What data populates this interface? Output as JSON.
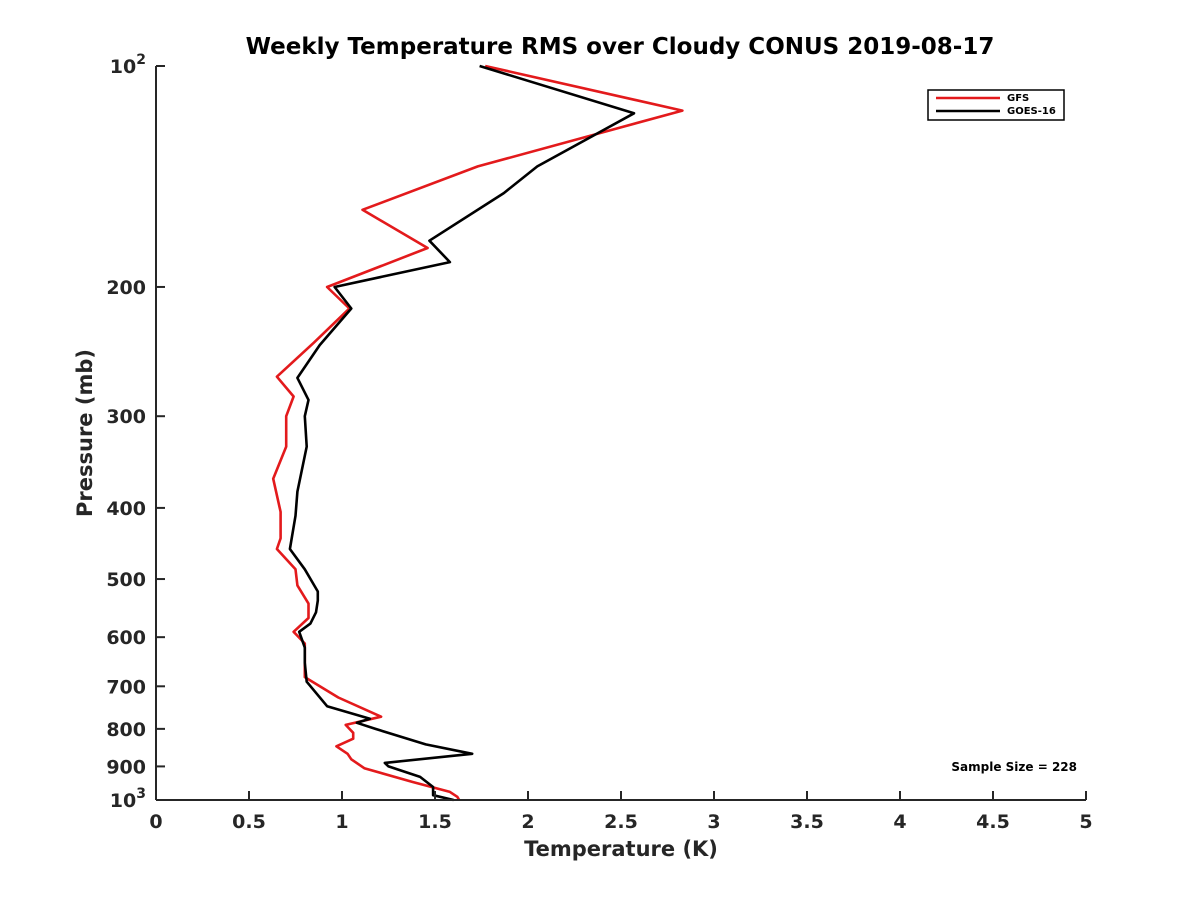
{
  "chart_data": {
    "type": "line",
    "title": "Weekly Temperature RMS over Cloudy CONUS 2019-08-17",
    "xlabel": "Temperature (K)",
    "ylabel": "Pressure (mb)",
    "xlim": [
      0,
      5
    ],
    "ylim": [
      100,
      1000
    ],
    "y_scale": "log",
    "y_reversed": true,
    "x_ticks": [
      0,
      0.5,
      1,
      1.5,
      2,
      2.5,
      3,
      3.5,
      4,
      4.5,
      5
    ],
    "x_tick_labels": [
      "0",
      "0.5",
      "1",
      "1.5",
      "2",
      "2.5",
      "3",
      "3.5",
      "4",
      "4.5",
      "5"
    ],
    "y_ticks": [
      {
        "value": 100,
        "base": "10",
        "exp": "2",
        "label": ""
      },
      {
        "value": 200,
        "label": "200"
      },
      {
        "value": 300,
        "label": "300"
      },
      {
        "value": 400,
        "label": "400"
      },
      {
        "value": 500,
        "label": "500"
      },
      {
        "value": 600,
        "label": "600"
      },
      {
        "value": 700,
        "label": "700"
      },
      {
        "value": 800,
        "label": "800"
      },
      {
        "value": 900,
        "label": "900"
      },
      {
        "value": 1000,
        "base": "10",
        "exp": "3",
        "label": ""
      }
    ],
    "grid": false,
    "legend_position": "top-right",
    "annotation": "Sample Size = 228",
    "series": [
      {
        "name": "GFS",
        "color": "#e31a1c",
        "points": [
          [
            1.77,
            100
          ],
          [
            2.83,
            115
          ],
          [
            1.73,
            137
          ],
          [
            1.11,
            157
          ],
          [
            1.46,
            177
          ],
          [
            0.92,
            200
          ],
          [
            1.04,
            214
          ],
          [
            0.85,
            238
          ],
          [
            0.65,
            265
          ],
          [
            0.74,
            282
          ],
          [
            0.7,
            300
          ],
          [
            0.7,
            330
          ],
          [
            0.63,
            365
          ],
          [
            0.67,
            405
          ],
          [
            0.67,
            440
          ],
          [
            0.65,
            455
          ],
          [
            0.75,
            485
          ],
          [
            0.76,
            510
          ],
          [
            0.82,
            540
          ],
          [
            0.82,
            565
          ],
          [
            0.74,
            590
          ],
          [
            0.8,
            612
          ],
          [
            0.8,
            650
          ],
          [
            0.8,
            680
          ],
          [
            0.98,
            725
          ],
          [
            1.21,
            770
          ],
          [
            1.02,
            790
          ],
          [
            1.06,
            810
          ],
          [
            1.06,
            825
          ],
          [
            0.97,
            845
          ],
          [
            1.03,
            865
          ],
          [
            1.05,
            880
          ],
          [
            1.12,
            905
          ],
          [
            1.38,
            945
          ],
          [
            1.58,
            975
          ],
          [
            1.62,
            990
          ],
          [
            1.63,
            1000
          ]
        ]
      },
      {
        "name": "GOES-16",
        "color": "#000000",
        "points": [
          [
            1.74,
            100
          ],
          [
            2.57,
            116
          ],
          [
            2.05,
            137
          ],
          [
            1.87,
            149
          ],
          [
            1.47,
            173
          ],
          [
            1.58,
            185
          ],
          [
            0.96,
            200
          ],
          [
            1.05,
            214
          ],
          [
            0.88,
            240
          ],
          [
            0.76,
            266
          ],
          [
            0.82,
            285
          ],
          [
            0.8,
            300
          ],
          [
            0.81,
            330
          ],
          [
            0.76,
            380
          ],
          [
            0.75,
            410
          ],
          [
            0.72,
            455
          ],
          [
            0.8,
            485
          ],
          [
            0.87,
            520
          ],
          [
            0.87,
            535
          ],
          [
            0.86,
            555
          ],
          [
            0.83,
            575
          ],
          [
            0.77,
            590
          ],
          [
            0.8,
            620
          ],
          [
            0.8,
            650
          ],
          [
            0.81,
            690
          ],
          [
            0.92,
            745
          ],
          [
            1.15,
            775
          ],
          [
            1.08,
            785
          ],
          [
            1.18,
            800
          ],
          [
            1.45,
            840
          ],
          [
            1.7,
            865
          ],
          [
            1.23,
            890
          ],
          [
            1.25,
            900
          ],
          [
            1.42,
            930
          ],
          [
            1.49,
            960
          ],
          [
            1.49,
            985
          ],
          [
            1.6,
            1000
          ]
        ]
      }
    ]
  }
}
